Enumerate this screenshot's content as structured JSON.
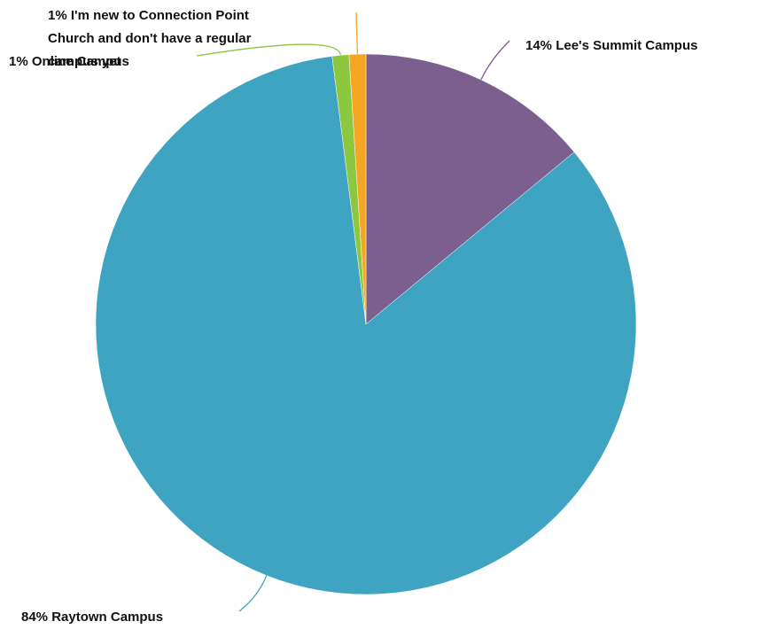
{
  "chart_data": {
    "type": "pie",
    "categories": [
      "Lee's Summit Campus",
      "Raytown Campus",
      "Online Campus",
      "I'm new to Connection Point Church and don't have a regular campus yet"
    ],
    "values": [
      14,
      84,
      1,
      1
    ],
    "value_labels": [
      "14%",
      "84%",
      "1%",
      "1%"
    ],
    "colors": [
      "#7b5f8f",
      "#3fa3c2",
      "#8dc63f",
      "#f5a623"
    ]
  }
}
